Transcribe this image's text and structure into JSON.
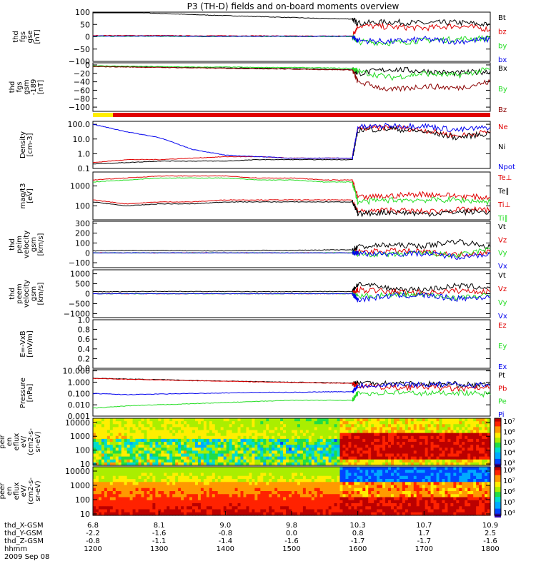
{
  "title": "P3 (TH-D) fields and on-board moments overview",
  "date_label": "2009 Sep 08",
  "colors": {
    "black": "#000000",
    "red": "#e00000",
    "green": "#22dd22",
    "blue": "#0000ee",
    "darkred": "#8b0000",
    "yellow": "#ffee00"
  },
  "ephemeris": {
    "labels": [
      "thd_X-GSM",
      "thd_Y-GSM",
      "thd_Z-GSM",
      "hhmm"
    ],
    "columns": [
      [
        "6.8",
        "-2.2",
        "-0.8",
        "1200"
      ],
      [
        "8.1",
        "-1.6",
        "-1.1",
        "1300"
      ],
      [
        "9.0",
        "-0.8",
        "-1.4",
        "1400"
      ],
      [
        "9.8",
        "0.0",
        "-1.6",
        "1500"
      ],
      [
        "10.3",
        "0.8",
        "-1.7",
        "1600"
      ],
      [
        "10.7",
        "1.7",
        "-1.7",
        "1700"
      ],
      [
        "10.9",
        "2.5",
        "-1.6",
        "1800"
      ]
    ]
  },
  "panels": [
    {
      "id": "fgs-gse",
      "ylabel": [
        "thd",
        "fgs",
        "gse",
        "[nT]"
      ],
      "ticks": [
        {
          "v": 100,
          "t": "100"
        },
        {
          "v": 50,
          "t": "50"
        },
        {
          "v": 0,
          "t": "0"
        },
        {
          "v": -50,
          "t": "−50"
        },
        {
          "v": -100,
          "t": "−100"
        }
      ],
      "legend": [
        {
          "t": "Bt",
          "c": "black"
        },
        {
          "t": "bz",
          "c": "red"
        },
        {
          "t": "by",
          "c": "green"
        },
        {
          "t": "bx",
          "c": "blue"
        }
      ]
    },
    {
      "id": "fgs-gsm",
      "ylabel": [
        "thd",
        "fgs",
        "gsm",
        "-189",
        "[nT]"
      ],
      "ticks": [
        {
          "v": 0,
          "t": "0"
        },
        {
          "v": -20,
          "t": "−20"
        },
        {
          "v": -40,
          "t": "−40"
        },
        {
          "v": -60,
          "t": "−60"
        },
        {
          "v": -80,
          "t": "−80"
        },
        {
          "v": -100,
          "t": "−100"
        }
      ],
      "legend": [
        {
          "t": "Bx",
          "c": "black"
        },
        {
          "t": "By",
          "c": "green"
        },
        {
          "t": "Bz",
          "c": "darkred"
        }
      ]
    },
    {
      "id": "density",
      "ylabel": [
        "Density",
        "[cm-3]"
      ],
      "ticks": [
        {
          "v": 2,
          "t": "100.0"
        },
        {
          "v": 1,
          "t": "10.0"
        },
        {
          "v": 0,
          "t": "1.0"
        },
        {
          "v": -1,
          "t": "0.1"
        }
      ],
      "legend": [
        {
          "t": "Ne",
          "c": "red"
        },
        {
          "t": "Ni",
          "c": "black"
        },
        {
          "t": "Npot",
          "c": "blue"
        }
      ]
    },
    {
      "id": "temp",
      "ylabel": [
        "mag/t3",
        "[eV]"
      ],
      "ticks": [
        {
          "v": 3,
          "t": "1000"
        },
        {
          "v": 2,
          "t": "100"
        }
      ],
      "legend": [
        {
          "t": "Te⊥",
          "c": "red"
        },
        {
          "t": "Te∥",
          "c": "black"
        },
        {
          "t": "Ti⊥",
          "c": "red"
        },
        {
          "t": "Ti∥",
          "c": "green"
        }
      ]
    },
    {
      "id": "peim",
      "ylabel": [
        "thd",
        "peim",
        "velocity",
        "gsm",
        "[km/s]"
      ],
      "ticks": [
        {
          "v": 300,
          "t": "300"
        },
        {
          "v": 200,
          "t": "200"
        },
        {
          "v": 100,
          "t": "100"
        },
        {
          "v": 0,
          "t": "0"
        },
        {
          "v": -100,
          "t": "−100"
        }
      ],
      "legend": [
        {
          "t": "Vt",
          "c": "black"
        },
        {
          "t": "Vz",
          "c": "red"
        },
        {
          "t": "Vy",
          "c": "green"
        },
        {
          "t": "Vx",
          "c": "blue"
        }
      ]
    },
    {
      "id": "peem",
      "ylabel": [
        "thd",
        "peem",
        "velocity",
        "gsm",
        "[km/s]"
      ],
      "ticks": [
        {
          "v": 1000,
          "t": "1000"
        },
        {
          "v": 500,
          "t": "500"
        },
        {
          "v": 0,
          "t": "0"
        },
        {
          "v": -500,
          "t": "−500"
        },
        {
          "v": -1000,
          "t": "−1000"
        }
      ],
      "legend": [
        {
          "t": "Vt",
          "c": "black"
        },
        {
          "t": "Vz",
          "c": "red"
        },
        {
          "t": "Vy",
          "c": "green"
        },
        {
          "t": "Vx",
          "c": "blue"
        }
      ]
    },
    {
      "id": "efield",
      "ylabel": [
        "E=-VxB",
        "[mV/m]"
      ],
      "ticks": [
        {
          "v": 1.0,
          "t": "1.0"
        },
        {
          "v": 0.8,
          "t": "0.8"
        },
        {
          "v": 0.6,
          "t": "0.6"
        },
        {
          "v": 0.4,
          "t": "0.4"
        },
        {
          "v": 0.2,
          "t": "0.2"
        },
        {
          "v": 0.0,
          "t": "0.0"
        }
      ],
      "legend": [
        {
          "t": "Ez",
          "c": "red"
        },
        {
          "t": "Ey",
          "c": "green"
        },
        {
          "t": "Ex",
          "c": "blue"
        }
      ]
    },
    {
      "id": "pressure",
      "ylabel": [
        "Pressure",
        "[nPa]"
      ],
      "ticks": [
        {
          "v": 1,
          "t": "10.000"
        },
        {
          "v": 0,
          "t": "1.000"
        },
        {
          "v": -1,
          "t": "0.100"
        },
        {
          "v": -2,
          "t": "0.010"
        },
        {
          "v": -3,
          "t": "0.001"
        }
      ],
      "legend": [
        {
          "t": "Pt",
          "c": "black"
        },
        {
          "t": "Pb",
          "c": "red"
        },
        {
          "t": "Pe",
          "c": "green"
        },
        {
          "t": "Pi",
          "c": "blue"
        }
      ]
    },
    {
      "id": "peir",
      "ylabel": [
        "thd",
        "peir",
        "en",
        "eflux",
        "eV/",
        "(cm2-s-",
        "sr-eV)"
      ],
      "ticks": [
        {
          "v": 4,
          "t": "10000"
        },
        {
          "v": 3,
          "t": "1000"
        },
        {
          "v": 2,
          "t": "100"
        },
        {
          "v": 1,
          "t": "10"
        }
      ],
      "colorbar": [
        "10⁷",
        "10⁶",
        "10⁵",
        "10⁴",
        "10³"
      ]
    },
    {
      "id": "peer",
      "ylabel": [
        "thd",
        "peer",
        "en",
        "eflux",
        "eV/",
        "(cm2-s-",
        "sr-eV)"
      ],
      "ticks": [
        {
          "v": 4,
          "t": "10000"
        },
        {
          "v": 3,
          "t": "1000"
        },
        {
          "v": 2,
          "t": "100"
        },
        {
          "v": 1,
          "t": "10"
        }
      ],
      "colorbar": [
        "10⁸",
        "10⁷",
        "10⁶",
        "10⁵",
        "10⁴"
      ]
    }
  ],
  "chart_data": {
    "type": "line",
    "title": "P3 (TH-D) fields and on-board moments overview",
    "x_range": [
      "1200",
      "1800"
    ],
    "x_tick_labels": [
      "1200",
      "1300",
      "1400",
      "1500",
      "1600",
      "1700",
      "1800"
    ],
    "time_hhmm": [
      1200,
      1230,
      1300,
      1330,
      1400,
      1430,
      1500,
      1530,
      1555,
      1600,
      1630,
      1700,
      1730,
      1800
    ],
    "panels": {
      "fgs_gse": {
        "ylim": [
          -100,
          100
        ],
        "series": [
          {
            "name": "Bt",
            "values": [
              105,
              100,
              95,
              90,
              86,
              82,
              78,
              74,
              72,
              55,
              60,
              55,
              58,
              48
            ]
          },
          {
            "name": "bz",
            "values": [
              5,
              5,
              5,
              4,
              4,
              4,
              3,
              3,
              3,
              45,
              40,
              35,
              45,
              30
            ]
          },
          {
            "name": "by",
            "values": [
              2,
              2,
              2,
              1,
              1,
              1,
              1,
              1,
              1,
              -20,
              -25,
              -15,
              -10,
              -5
            ]
          },
          {
            "name": "bx",
            "values": [
              3,
              3,
              3,
              2,
              2,
              2,
              2,
              2,
              2,
              -15,
              -20,
              -10,
              -20,
              -10
            ]
          }
        ]
      },
      "fgs_gsm": {
        "ylim": [
          -110,
          5
        ],
        "series": [
          {
            "name": "Bx",
            "values": [
              -3,
              -4,
              -5,
              -6,
              -7,
              -8,
              -9,
              -10,
              -11,
              -20,
              -10,
              -15,
              -20,
              -15
            ]
          },
          {
            "name": "By",
            "values": [
              -2,
              -3,
              -4,
              -5,
              -5,
              -6,
              -6,
              -7,
              -8,
              -15,
              -30,
              -20,
              -25,
              -10
            ]
          },
          {
            "name": "Bz",
            "values": [
              -4,
              -5,
              -6,
              -7,
              -8,
              -9,
              -10,
              -11,
              -12,
              -40,
              -60,
              -50,
              -55,
              -40
            ]
          }
        ]
      },
      "density_log10": {
        "ylim": [
          -1,
          2.2
        ],
        "series": [
          {
            "name": "Ne",
            "values": [
              -0.6,
              -0.4,
              -0.4,
              -0.3,
              -0.2,
              -0.2,
              -0.3,
              -0.3,
              -0.3,
              1.7,
              1.8,
              1.6,
              1.2,
              1.5
            ]
          },
          {
            "name": "Ni",
            "values": [
              -0.7,
              -0.6,
              -0.5,
              -0.5,
              -0.5,
              -0.4,
              -0.4,
              -0.4,
              -0.4,
              1.6,
              1.7,
              1.5,
              1.1,
              1.4
            ]
          },
          {
            "name": "Npot",
            "values": [
              2.0,
              1.5,
              1.1,
              0.3,
              -0.1,
              -0.2,
              -0.3,
              -0.3,
              -0.3,
              1.8,
              1.9,
              1.9,
              1.6,
              1.8
            ]
          }
        ]
      },
      "temperature_log10": {
        "ylim": [
          1.3,
          3.7
        ],
        "series": [
          {
            "name": "Te⊥",
            "values": [
              2.3,
              2.1,
              2.2,
              2.2,
              2.3,
              2.3,
              2.3,
              2.3,
              2.3,
              1.7,
              1.8,
              1.7,
              1.8,
              1.8
            ]
          },
          {
            "name": "Te∥",
            "values": [
              2.2,
              2.0,
              2.1,
              2.1,
              2.2,
              2.2,
              2.2,
              2.2,
              2.2,
              1.6,
              1.7,
              1.6,
              1.7,
              1.7
            ]
          },
          {
            "name": "Ti⊥",
            "values": [
              3.3,
              3.4,
              3.5,
              3.5,
              3.5,
              3.4,
              3.4,
              3.3,
              3.3,
              2.4,
              2.5,
              2.6,
              2.5,
              2.4
            ]
          },
          {
            "name": "Ti∥",
            "values": [
              3.2,
              3.3,
              3.4,
              3.4,
              3.4,
              3.3,
              3.3,
              3.2,
              3.2,
              2.2,
              2.3,
              2.3,
              2.3,
              2.2
            ]
          }
        ]
      },
      "peim_velocity": {
        "ylim": [
          -150,
          320
        ],
        "series": [
          {
            "name": "Vt",
            "values": [
              20,
              25,
              25,
              20,
              20,
              25,
              25,
              30,
              30,
              60,
              80,
              70,
              120,
              60
            ]
          },
          {
            "name": "Vz",
            "values": [
              0,
              0,
              0,
              0,
              0,
              0,
              0,
              0,
              0,
              10,
              20,
              10,
              -20,
              10
            ]
          },
          {
            "name": "Vy",
            "values": [
              0,
              0,
              0,
              0,
              0,
              0,
              0,
              0,
              0,
              -10,
              -20,
              0,
              -30,
              40
            ]
          },
          {
            "name": "Vx",
            "values": [
              0,
              0,
              0,
              0,
              0,
              0,
              0,
              0,
              0,
              -5,
              -10,
              -5,
              -40,
              -10
            ]
          }
        ]
      },
      "peem_velocity": {
        "ylim": [
          -1200,
          1200
        ],
        "series": [
          {
            "name": "Vt",
            "values": [
              100,
              100,
              120,
              110,
              110,
              100,
              100,
              110,
              110,
              500,
              250,
              200,
              400,
              300
            ]
          },
          {
            "name": "Vz",
            "values": [
              0,
              0,
              0,
              0,
              0,
              0,
              0,
              0,
              0,
              200,
              100,
              50,
              150,
              100
            ]
          },
          {
            "name": "Vy",
            "values": [
              0,
              0,
              0,
              0,
              0,
              0,
              0,
              0,
              0,
              -150,
              -50,
              -50,
              -200,
              -100
            ]
          },
          {
            "name": "Vx",
            "values": [
              0,
              0,
              0,
              0,
              0,
              0,
              0,
              0,
              0,
              -300,
              -100,
              -80,
              -250,
              -150
            ]
          }
        ]
      },
      "efield": {
        "ylim": [
          0,
          1
        ],
        "series": []
      },
      "pressure_log10": {
        "ylim": [
          -3,
          1.1
        ],
        "series": [
          {
            "name": "Pt",
            "values": [
              0.35,
              0.28,
              0.22,
              0.15,
              0.1,
              0.05,
              0.0,
              -0.05,
              -0.08,
              -0.05,
              -0.1,
              -0.15,
              -0.2,
              -0.3
            ]
          },
          {
            "name": "Pb",
            "values": [
              0.33,
              0.26,
              0.2,
              0.13,
              0.08,
              0.03,
              -0.02,
              -0.07,
              -0.1,
              -0.3,
              -0.5,
              -0.4,
              -0.6,
              -0.5
            ]
          },
          {
            "name": "Pe",
            "values": [
              -2.3,
              -2.1,
              -2.0,
              -1.9,
              -1.8,
              -1.7,
              -1.6,
              -1.6,
              -1.6,
              -1.0,
              -0.9,
              -1.0,
              -0.9,
              -1.1
            ]
          },
          {
            "name": "Pi",
            "values": [
              -1.0,
              -1.1,
              -1.05,
              -1.0,
              -0.95,
              -0.9,
              -0.9,
              -0.85,
              -0.85,
              -0.3,
              -0.2,
              -0.2,
              -0.2,
              -0.25
            ]
          }
        ]
      }
    }
  }
}
